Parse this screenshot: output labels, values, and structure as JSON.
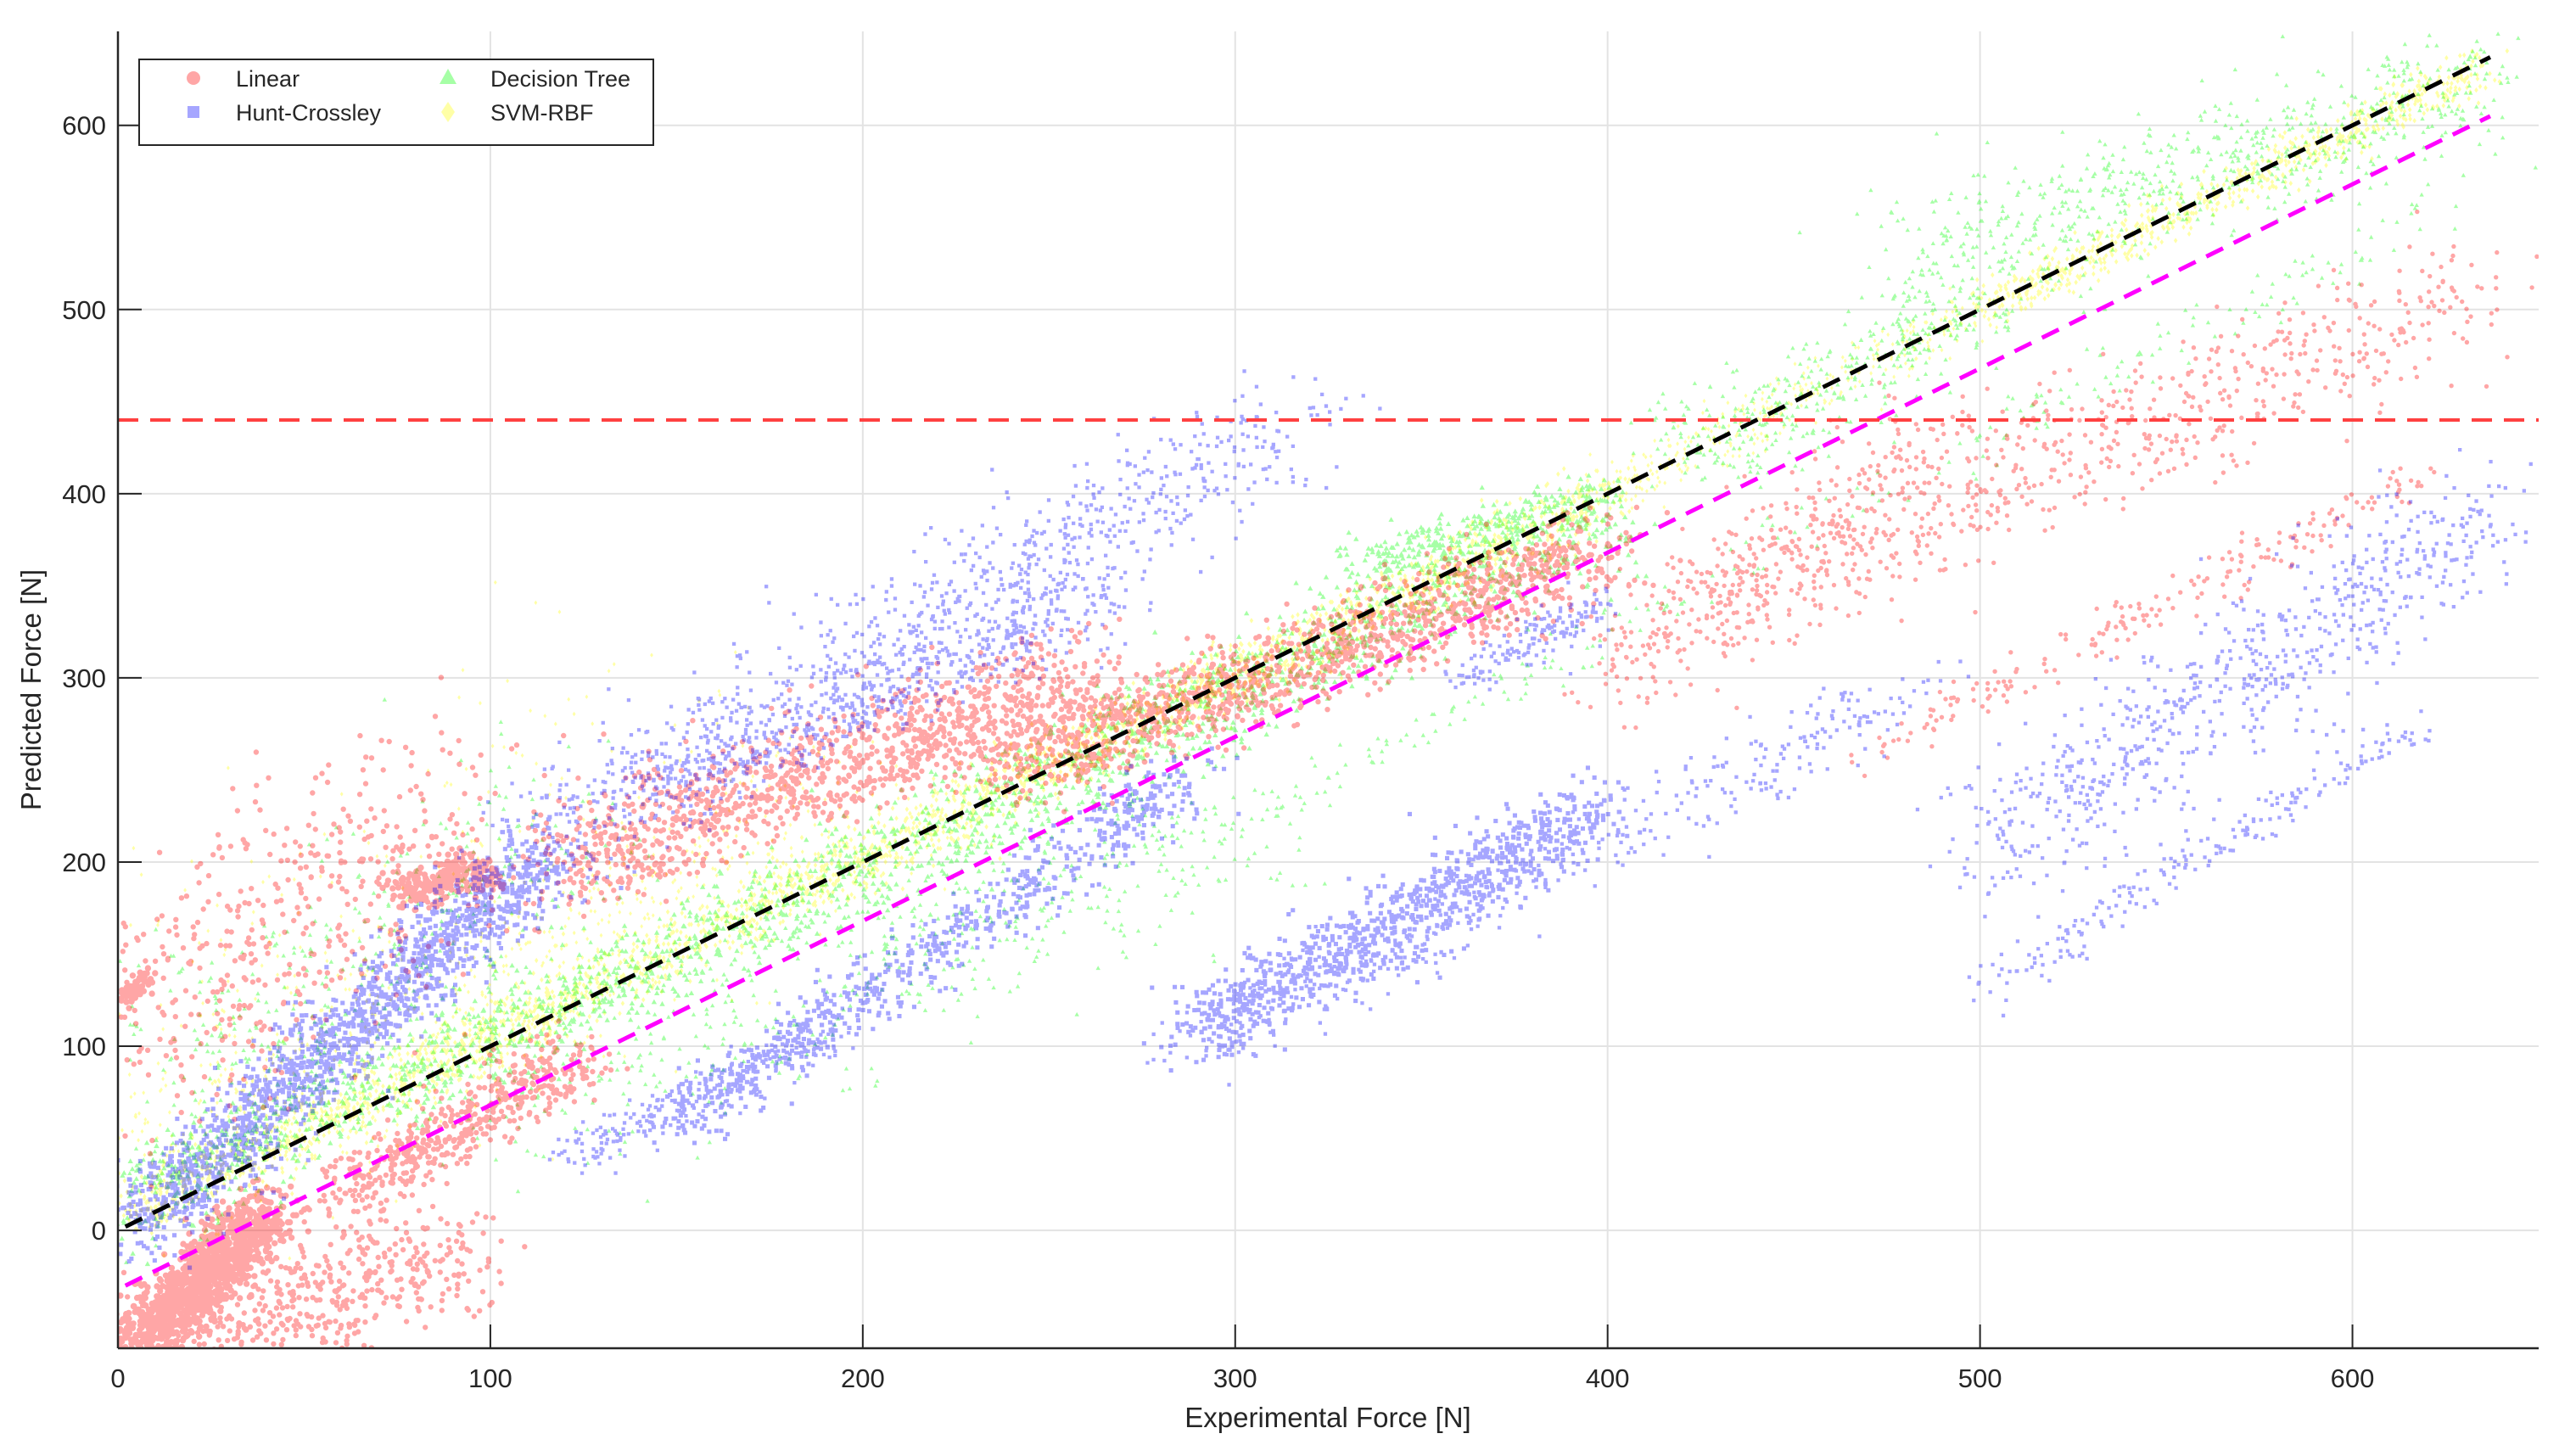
{
  "chart_data": {
    "type": "scatter",
    "title": "",
    "xlabel": "Experimental Force [N]",
    "ylabel": "Predicted Force [N]",
    "xlim": [
      0,
      650
    ],
    "ylim": [
      -64,
      651
    ],
    "xticks": [
      0,
      100,
      200,
      300,
      400,
      500,
      600
    ],
    "yticks": [
      0,
      100,
      200,
      300,
      400,
      500,
      600
    ],
    "grid": true,
    "legend": {
      "position": "upper-left",
      "columns": 2,
      "entries": [
        {
          "name": "Linear",
          "marker": "circle",
          "color": "#ff0000"
        },
        {
          "name": "Hunt-Crossley",
          "marker": "square",
          "color": "#0000ff"
        },
        {
          "name": "Decision Tree",
          "marker": "triangle",
          "color": "#00ff00"
        },
        {
          "name": "SVM-RBF",
          "marker": "diamond",
          "color": "#ffff00"
        }
      ]
    },
    "reference_lines": [
      {
        "name": "ideal y=x",
        "style": "dashed",
        "color": "#000000",
        "x": [
          2,
          637
        ],
        "y": [
          2,
          637
        ]
      },
      {
        "name": "offset line",
        "style": "dashed",
        "color": "#ff00ff",
        "x": [
          2,
          637
        ],
        "y": [
          -30,
          605
        ]
      },
      {
        "name": "threshold",
        "style": "dashed",
        "color": "#ff4040",
        "x": [
          0,
          650
        ],
        "y": [
          440,
          440
        ]
      }
    ],
    "series": [
      {
        "name": "SVM-RBF",
        "color": "#ffff00",
        "marker": "diamond",
        "alpha": 0.35,
        "bands": [
          {
            "from": [
              2,
              8
            ],
            "to": [
              400,
              400
            ],
            "spread": 14,
            "n": 2600,
            "size": 4
          },
          {
            "from": [
              2,
              40
            ],
            "to": [
              200,
              230
            ],
            "spread": 45,
            "n": 700,
            "size": 3
          },
          {
            "from": [
              400,
              400
            ],
            "to": [
              500,
              500
            ],
            "spread": 12,
            "n": 350,
            "size": 3
          },
          {
            "from": [
              500,
              500
            ],
            "to": [
              635,
              632
            ],
            "spread": 10,
            "n": 700,
            "size": 4
          },
          {
            "from": [
              10,
              120
            ],
            "to": [
              150,
              280
            ],
            "spread": 60,
            "n": 150,
            "size": 3
          }
        ]
      },
      {
        "name": "Decision Tree",
        "color": "#00ff00",
        "marker": "triangle",
        "alpha": 0.35,
        "bands": [
          {
            "from": [
              2,
              15
            ],
            "to": [
              400,
              385
            ],
            "spread": 22,
            "n": 2000,
            "size": 4
          },
          {
            "from": [
              2,
              60
            ],
            "to": [
              120,
              220
            ],
            "spread": 50,
            "n": 400,
            "size": 3
          },
          {
            "from": [
              330,
              360
            ],
            "to": [
              400,
              400
            ],
            "spread": 12,
            "n": 300,
            "size": 4
          },
          {
            "from": [
              420,
              420
            ],
            "to": [
              500,
              500
            ],
            "spread": 25,
            "n": 350,
            "size": 3
          },
          {
            "from": [
              480,
              520
            ],
            "to": [
              635,
              625
            ],
            "spread": 30,
            "n": 700,
            "size": 3
          },
          {
            "from": [
              280,
              200
            ],
            "to": [
              625,
              557
            ],
            "spread": 12,
            "n": 250,
            "size": 3
          },
          {
            "from": [
              100,
              60
            ],
            "to": [
              300,
              220
            ],
            "spread": 40,
            "n": 500,
            "size": 3
          }
        ]
      },
      {
        "name": "Linear",
        "color": "#ff0000",
        "marker": "circle",
        "alpha": 0.35,
        "bands": [
          {
            "from": [
              5,
              -64
            ],
            "to": [
              40,
              10
            ],
            "spread": 14,
            "n": 1300,
            "size": 5
          },
          {
            "from": [
              15,
              -64
            ],
            "to": [
              90,
              -10
            ],
            "spread": 30,
            "n": 500,
            "size": 4
          },
          {
            "from": [
              5,
              100
            ],
            "to": [
              90,
              230
            ],
            "spread": 55,
            "n": 500,
            "size": 4
          },
          {
            "from": [
              75,
              185
            ],
            "to": [
              100,
              195
            ],
            "spread": 8,
            "n": 250,
            "size": 5
          },
          {
            "from": [
              120,
              200
            ],
            "to": [
              260,
              300
            ],
            "spread": 25,
            "n": 1200,
            "size": 4
          },
          {
            "from": [
              60,
              20
            ],
            "to": [
              125,
              95
            ],
            "spread": 15,
            "n": 500,
            "size": 4
          },
          {
            "from": [
              240,
              250
            ],
            "to": [
              400,
              370
            ],
            "spread": 20,
            "n": 1300,
            "size": 4
          },
          {
            "from": [
              400,
              300
            ],
            "to": [
              490,
              438
            ],
            "spread": 25,
            "n": 300,
            "size": 3
          },
          {
            "from": [
              420,
              330
            ],
            "to": [
              630,
              510
            ],
            "spread": 30,
            "n": 700,
            "size": 3
          },
          {
            "from": [
              470,
              260
            ],
            "to": [
              620,
              410
            ],
            "spread": 10,
            "n": 200,
            "size": 3
          },
          {
            "from": [
              2,
              125
            ],
            "to": [
              8,
              138
            ],
            "spread": 4,
            "n": 60,
            "size": 5
          }
        ]
      },
      {
        "name": "Hunt-Crossley",
        "color": "#0000ff",
        "marker": "square",
        "alpha": 0.35,
        "bands": [
          {
            "from": [
              5,
              2
            ],
            "to": [
              115,
              205
            ],
            "spread": 18,
            "n": 1600,
            "size": 4
          },
          {
            "from": [
              110,
              210
            ],
            "to": [
              315,
              440
            ],
            "spread": 28,
            "n": 900,
            "size": 3
          },
          {
            "from": [
              150,
              240
            ],
            "to": [
              270,
              350
            ],
            "spread": 18,
            "n": 500,
            "size": 3
          },
          {
            "from": [
              150,
              60
            ],
            "to": [
              290,
              250
            ],
            "spread": 15,
            "n": 700,
            "size": 4
          },
          {
            "from": [
              120,
              40
            ],
            "to": [
              195,
              110
            ],
            "spread": 10,
            "n": 250,
            "size": 3
          },
          {
            "from": [
              290,
              110
            ],
            "to": [
              400,
              230
            ],
            "spread": 18,
            "n": 900,
            "size": 4
          },
          {
            "from": [
              280,
              90
            ],
            "to": [
              490,
              305
            ],
            "spread": 18,
            "n": 400,
            "size": 3
          },
          {
            "from": [
              500,
              200
            ],
            "to": [
              635,
              390
            ],
            "spread": 30,
            "n": 700,
            "size": 3
          },
          {
            "from": [
              500,
              130
            ],
            "to": [
              620,
              277
            ],
            "spread": 10,
            "n": 200,
            "size": 3
          },
          {
            "from": [
              360,
              300
            ],
            "to": [
              400,
              340
            ],
            "spread": 10,
            "n": 150,
            "size": 3
          }
        ]
      }
    ]
  },
  "axes": {
    "xlabel": "Experimental Force [N]",
    "ylabel": "Predicted Force [N]",
    "xtick_labels": [
      "0",
      "100",
      "200",
      "300",
      "400",
      "500",
      "600"
    ],
    "ytick_labels": [
      "0",
      "100",
      "200",
      "300",
      "400",
      "500",
      "600"
    ]
  },
  "legend": {
    "items": [
      "Linear",
      "Hunt-Crossley",
      "Decision Tree",
      "SVM-RBF"
    ]
  }
}
